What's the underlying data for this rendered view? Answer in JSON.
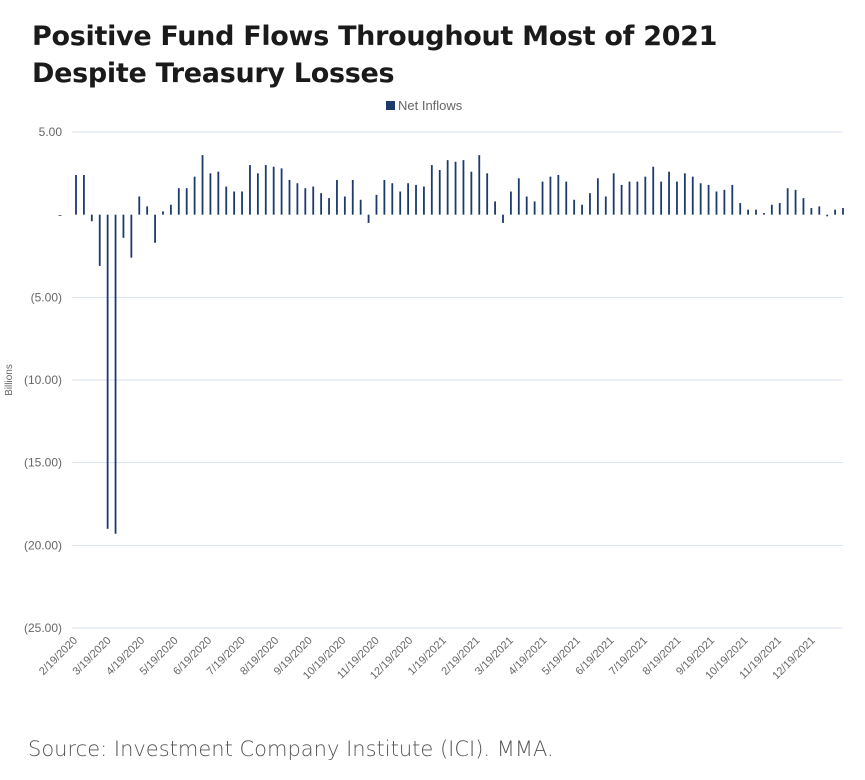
{
  "title_line1": "Positive Fund Flows Throughout Most of 2021",
  "title_line2": "Despite Treasury Losses",
  "legend_label": "Net Inflows",
  "source": "Source: Investment Company Institute (ICI). MMA.",
  "colors": {
    "bar": "#1c3a6b",
    "grid": "#dbe3ee",
    "axis_text": "#666666"
  },
  "chart_data": {
    "type": "bar",
    "series": [
      {
        "name": "Net Inflows"
      }
    ],
    "ylabel": "Billions",
    "xlabel": "",
    "ylim": [
      -25,
      5
    ],
    "yticks": [
      5,
      0,
      -5,
      -10,
      -15,
      -20,
      -25
    ],
    "ytick_labels": [
      "5.00",
      "-",
      "(5.00)",
      "(10.00)",
      "(15.00)",
      "(20.00)",
      "(25.00)"
    ],
    "grid": true,
    "legend_position": "top-center",
    "xtick_labels": [
      "2/19/2020",
      "3/19/2020",
      "4/19/2020",
      "5/19/2020",
      "6/19/2020",
      "7/19/2020",
      "8/19/2020",
      "9/19/2020",
      "10/19/2020",
      "11/19/2020",
      "12/19/2020",
      "1/19/2021",
      "2/19/2021",
      "3/19/2021",
      "4/19/2021",
      "5/19/2021",
      "6/19/2021",
      "7/19/2021",
      "8/19/2021",
      "9/19/2021",
      "10/19/2021",
      "11/19/2021",
      "12/19/2021"
    ],
    "values": [
      2.4,
      2.4,
      -0.4,
      -3.1,
      -19,
      -19.3,
      -1.4,
      -2.6,
      1.1,
      0.5,
      -1.7,
      0.2,
      0.6,
      1.6,
      1.6,
      2.3,
      3.6,
      2.5,
      2.6,
      1.7,
      1.4,
      1.4,
      3.0,
      2.5,
      3.0,
      2.9,
      2.8,
      2.1,
      1.9,
      1.6,
      1.7,
      1.3,
      1.0,
      2.1,
      1.1,
      2.1,
      0.9,
      -0.5,
      1.2,
      2.1,
      1.9,
      1.4,
      1.9,
      1.8,
      1.7,
      3.0,
      2.7,
      3.3,
      3.2,
      3.3,
      2.6,
      3.6,
      2.5,
      0.8,
      -0.5,
      1.4,
      2.2,
      1.1,
      0.8,
      2.0,
      2.3,
      2.4,
      2.0,
      0.9,
      0.6,
      1.3,
      2.2,
      1.1,
      2.5,
      1.8,
      2.0,
      2.0,
      2.3,
      2.9,
      2.0,
      2.6,
      2.0,
      2.5,
      2.3,
      1.9,
      1.8,
      1.4,
      1.5,
      1.8,
      0.7,
      0.3,
      0.3,
      0.1,
      0.6,
      0.7,
      1.6,
      1.5,
      1.0,
      0.4,
      0.5,
      -0.1,
      0.3,
      0.4
    ]
  }
}
